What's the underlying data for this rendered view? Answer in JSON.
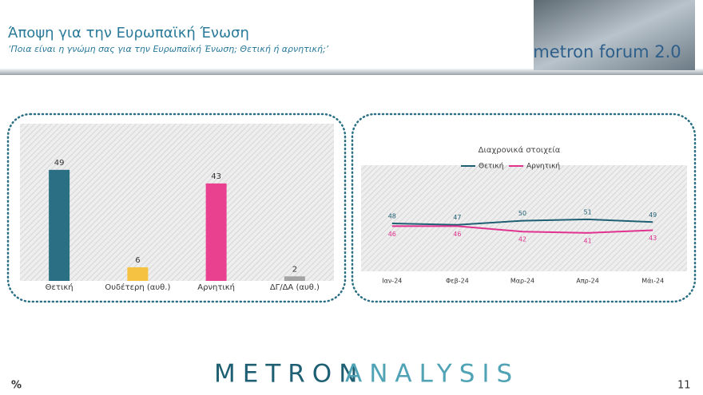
{
  "header": {
    "title": "Άποψη για την Ευρωπαϊκή Ένωση",
    "subtitle": "‘Ποια είναι η γνώμη σας για την Ευρωπαϊκή Ένωση; Θετική ή αρνητική;’",
    "logo": "metron forum 2.0"
  },
  "chart_data": [
    {
      "type": "bar",
      "categories": [
        "Θετική",
        "Ουδέτερη (αυθ.)",
        "Αρνητική",
        "ΔΓ/ΔΑ (αυθ.)"
      ],
      "values": [
        49,
        6,
        43,
        2
      ],
      "colors": [
        "#2a6f84",
        "#f6c242",
        "#e9418f",
        "#a3a3a3"
      ]
    },
    {
      "type": "line",
      "title": "Διαχρονικά στοιχεία",
      "categories": [
        "Ιαν-24",
        "Φεβ-24",
        "Μαρ-24",
        "Απρ-24",
        "Μάι-24"
      ],
      "series": [
        {
          "name": "Θετική",
          "color": "#1f5f73",
          "values": [
            48,
            47,
            50,
            51,
            49
          ]
        },
        {
          "name": "Αρνητική",
          "color": "#e0338f",
          "values": [
            46,
            46,
            42,
            41,
            43
          ]
        }
      ]
    }
  ],
  "footer": {
    "brand_a": "METRON",
    "brand_b": "ANALYSIS",
    "unit": "%",
    "page": "11"
  }
}
